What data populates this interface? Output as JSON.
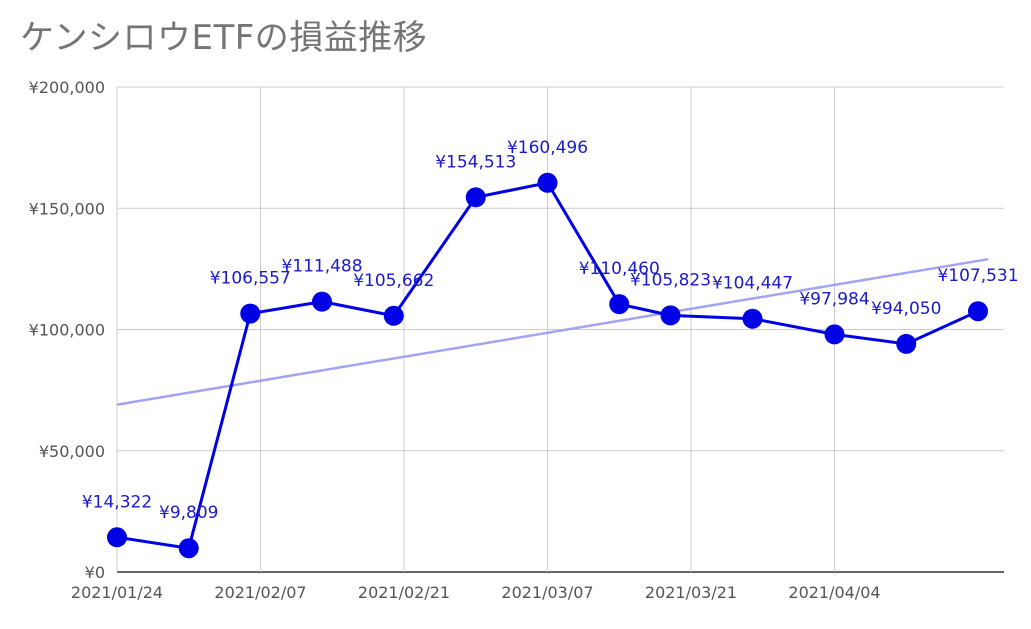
{
  "title": "ケンシロウETFの損益推移",
  "chart_data": {
    "type": "line",
    "title": "ケンシロウETFの損益推移",
    "xlabel": "",
    "ylabel": "",
    "ylim": [
      0,
      200000
    ],
    "y_ticks": [
      {
        "value": 0,
        "label": "¥0"
      },
      {
        "value": 50000,
        "label": "¥50,000"
      },
      {
        "value": 100000,
        "label": "¥100,000"
      },
      {
        "value": 150000,
        "label": "¥150,000"
      },
      {
        "value": 200000,
        "label": "¥200,000"
      }
    ],
    "x_tick_labels": [
      "2021/01/24",
      "2021/02/07",
      "2021/02/21",
      "2021/03/07",
      "2021/03/21",
      "2021/04/04"
    ],
    "grid": true,
    "legend": "none",
    "series": [
      {
        "color": "#0000e6",
        "points": [
          {
            "x": "2021/01/24",
            "y": 14322,
            "label": "¥14,322"
          },
          {
            "x": "2021/01/31",
            "y": 9809,
            "label": "¥9,809"
          },
          {
            "x": "2021/02/06",
            "y": 106557,
            "label": "¥106,557"
          },
          {
            "x": "2021/02/13",
            "y": 111488,
            "label": "¥111,488"
          },
          {
            "x": "2021/02/20",
            "y": 105662,
            "label": "¥105,662"
          },
          {
            "x": "2021/02/28",
            "y": 154513,
            "label": "¥154,513"
          },
          {
            "x": "2021/03/07",
            "y": 160496,
            "label": "¥160,496"
          },
          {
            "x": "2021/03/14",
            "y": 110460,
            "label": "¥110,460"
          },
          {
            "x": "2021/03/19",
            "y": 105823,
            "label": "¥105,823"
          },
          {
            "x": "2021/03/27",
            "y": 104447,
            "label": "¥104,447"
          },
          {
            "x": "2021/04/04",
            "y": 97984,
            "label": "¥97,984"
          },
          {
            "x": "2021/04/11",
            "y": 94050,
            "label": "¥94,050"
          },
          {
            "x": "2021/04/18",
            "y": 107531,
            "label": "¥107,531"
          }
        ]
      }
    ],
    "trendline": {
      "color": "#a3a3f5",
      "start": {
        "x": "2021/01/24",
        "y": 69000
      },
      "end": {
        "x": "2021/04/19",
        "y": 129000
      }
    }
  }
}
